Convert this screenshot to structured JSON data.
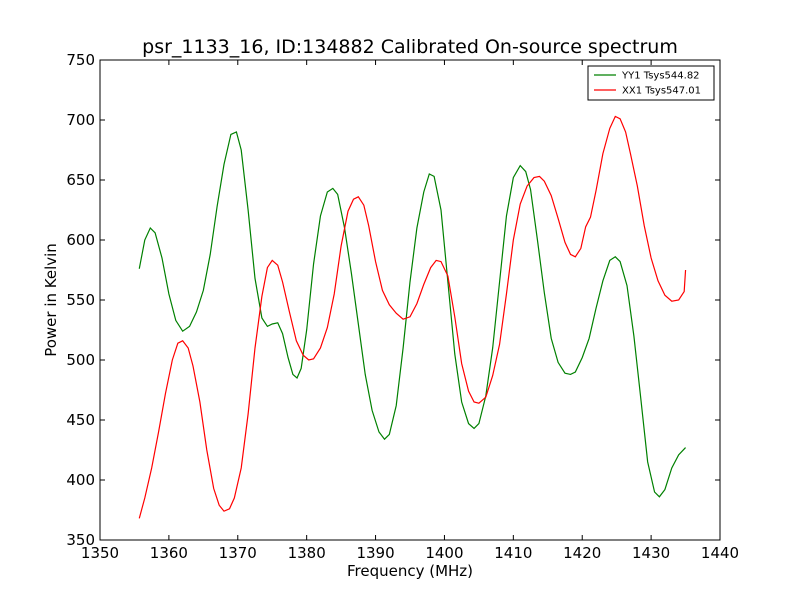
{
  "chart_data": {
    "type": "line",
    "title": "psr_1133_16, ID:134882 Calibrated On-source spectrum",
    "xlabel": "Frequency (MHz)",
    "ylabel": "Power in Kelvin",
    "xlim": [
      1350,
      1440
    ],
    "ylim": [
      350,
      750
    ],
    "xticks": [
      1350,
      1360,
      1370,
      1380,
      1390,
      1400,
      1410,
      1420,
      1430,
      1440
    ],
    "yticks": [
      350,
      400,
      450,
      500,
      550,
      600,
      650,
      700,
      750
    ],
    "grid": false,
    "legend_position": "top-right",
    "series": [
      {
        "name": "YY1 Tsys544.82",
        "color": "#008000",
        "points": [
          [
            1355.7,
            576
          ],
          [
            1356.5,
            600
          ],
          [
            1357.3,
            610
          ],
          [
            1358.0,
            606
          ],
          [
            1359.0,
            585
          ],
          [
            1360.0,
            555
          ],
          [
            1361.0,
            533
          ],
          [
            1362.0,
            524
          ],
          [
            1363.0,
            528
          ],
          [
            1364.0,
            540
          ],
          [
            1365.0,
            558
          ],
          [
            1366.0,
            588
          ],
          [
            1367.0,
            628
          ],
          [
            1368.0,
            663
          ],
          [
            1369.0,
            688
          ],
          [
            1369.8,
            690
          ],
          [
            1370.5,
            675
          ],
          [
            1371.5,
            625
          ],
          [
            1372.5,
            568
          ],
          [
            1373.5,
            535
          ],
          [
            1374.3,
            528
          ],
          [
            1375.0,
            530
          ],
          [
            1375.8,
            531
          ],
          [
            1376.5,
            522
          ],
          [
            1377.3,
            502
          ],
          [
            1378.0,
            488
          ],
          [
            1378.6,
            485
          ],
          [
            1379.2,
            493
          ],
          [
            1380.0,
            525
          ],
          [
            1381.0,
            580
          ],
          [
            1382.0,
            620
          ],
          [
            1383.0,
            640
          ],
          [
            1383.8,
            643
          ],
          [
            1384.5,
            638
          ],
          [
            1385.5,
            610
          ],
          [
            1386.5,
            572
          ],
          [
            1387.5,
            530
          ],
          [
            1388.5,
            488
          ],
          [
            1389.5,
            458
          ],
          [
            1390.5,
            440
          ],
          [
            1391.3,
            434
          ],
          [
            1392.0,
            438
          ],
          [
            1393.0,
            462
          ],
          [
            1394.0,
            510
          ],
          [
            1395.0,
            565
          ],
          [
            1396.0,
            610
          ],
          [
            1397.0,
            640
          ],
          [
            1397.8,
            655
          ],
          [
            1398.5,
            653
          ],
          [
            1399.5,
            625
          ],
          [
            1400.5,
            565
          ],
          [
            1401.5,
            505
          ],
          [
            1402.5,
            465
          ],
          [
            1403.5,
            447
          ],
          [
            1404.3,
            443
          ],
          [
            1405.0,
            447
          ],
          [
            1406.0,
            470
          ],
          [
            1407.0,
            510
          ],
          [
            1408.0,
            565
          ],
          [
            1409.0,
            620
          ],
          [
            1410.0,
            652
          ],
          [
            1411.0,
            662
          ],
          [
            1411.8,
            657
          ],
          [
            1412.5,
            642
          ],
          [
            1413.5,
            600
          ],
          [
            1414.5,
            556
          ],
          [
            1415.5,
            518
          ],
          [
            1416.5,
            498
          ],
          [
            1417.5,
            489
          ],
          [
            1418.3,
            488
          ],
          [
            1419.0,
            490
          ],
          [
            1420.0,
            502
          ],
          [
            1421.0,
            518
          ],
          [
            1422.0,
            543
          ],
          [
            1423.0,
            566
          ],
          [
            1424.0,
            583
          ],
          [
            1424.8,
            586
          ],
          [
            1425.5,
            582
          ],
          [
            1426.5,
            562
          ],
          [
            1427.5,
            520
          ],
          [
            1428.5,
            468
          ],
          [
            1429.5,
            415
          ],
          [
            1430.5,
            390
          ],
          [
            1431.2,
            386
          ],
          [
            1432.0,
            392
          ],
          [
            1433.0,
            410
          ],
          [
            1434.0,
            421
          ],
          [
            1435.0,
            427
          ]
        ]
      },
      {
        "name": "XX1 Tsys547.01",
        "color": "#ff0000",
        "points": [
          [
            1355.7,
            368
          ],
          [
            1356.5,
            385
          ],
          [
            1357.5,
            410
          ],
          [
            1358.5,
            440
          ],
          [
            1359.5,
            472
          ],
          [
            1360.5,
            500
          ],
          [
            1361.3,
            514
          ],
          [
            1362.0,
            516
          ],
          [
            1362.8,
            510
          ],
          [
            1363.5,
            495
          ],
          [
            1364.5,
            465
          ],
          [
            1365.5,
            425
          ],
          [
            1366.5,
            393
          ],
          [
            1367.3,
            379
          ],
          [
            1368.0,
            374
          ],
          [
            1368.8,
            376
          ],
          [
            1369.5,
            385
          ],
          [
            1370.5,
            410
          ],
          [
            1371.5,
            455
          ],
          [
            1372.5,
            510
          ],
          [
            1373.5,
            553
          ],
          [
            1374.3,
            577
          ],
          [
            1375.0,
            583
          ],
          [
            1375.8,
            579
          ],
          [
            1376.5,
            565
          ],
          [
            1377.5,
            540
          ],
          [
            1378.5,
            516
          ],
          [
            1379.5,
            504
          ],
          [
            1380.3,
            500
          ],
          [
            1381.0,
            501
          ],
          [
            1382.0,
            510
          ],
          [
            1383.0,
            527
          ],
          [
            1384.0,
            555
          ],
          [
            1385.0,
            595
          ],
          [
            1386.0,
            624
          ],
          [
            1386.8,
            634
          ],
          [
            1387.5,
            636
          ],
          [
            1388.3,
            629
          ],
          [
            1389.0,
            612
          ],
          [
            1390.0,
            582
          ],
          [
            1391.0,
            558
          ],
          [
            1392.0,
            546
          ],
          [
            1393.0,
            539
          ],
          [
            1394.0,
            534
          ],
          [
            1395.0,
            536
          ],
          [
            1396.0,
            547
          ],
          [
            1397.0,
            563
          ],
          [
            1398.0,
            577
          ],
          [
            1398.8,
            583
          ],
          [
            1399.5,
            582
          ],
          [
            1400.5,
            570
          ],
          [
            1401.5,
            536
          ],
          [
            1402.5,
            497
          ],
          [
            1403.5,
            474
          ],
          [
            1404.3,
            465
          ],
          [
            1405.0,
            464
          ],
          [
            1406.0,
            469
          ],
          [
            1407.0,
            487
          ],
          [
            1408.0,
            513
          ],
          [
            1409.0,
            555
          ],
          [
            1410.0,
            600
          ],
          [
            1411.0,
            630
          ],
          [
            1412.0,
            645
          ],
          [
            1413.0,
            652
          ],
          [
            1413.8,
            653
          ],
          [
            1414.5,
            649
          ],
          [
            1415.5,
            637
          ],
          [
            1416.5,
            618
          ],
          [
            1417.5,
            598
          ],
          [
            1418.3,
            588
          ],
          [
            1419.0,
            586
          ],
          [
            1419.8,
            593
          ],
          [
            1420.5,
            611
          ],
          [
            1421.2,
            619
          ],
          [
            1422.0,
            641
          ],
          [
            1423.0,
            672
          ],
          [
            1424.0,
            693
          ],
          [
            1424.8,
            703
          ],
          [
            1425.5,
            701
          ],
          [
            1426.3,
            690
          ],
          [
            1427.0,
            672
          ],
          [
            1428.0,
            645
          ],
          [
            1429.0,
            612
          ],
          [
            1430.0,
            585
          ],
          [
            1431.0,
            566
          ],
          [
            1432.0,
            554
          ],
          [
            1433.0,
            549
          ],
          [
            1434.0,
            550
          ],
          [
            1434.8,
            557
          ],
          [
            1435.0,
            575
          ]
        ]
      }
    ]
  }
}
